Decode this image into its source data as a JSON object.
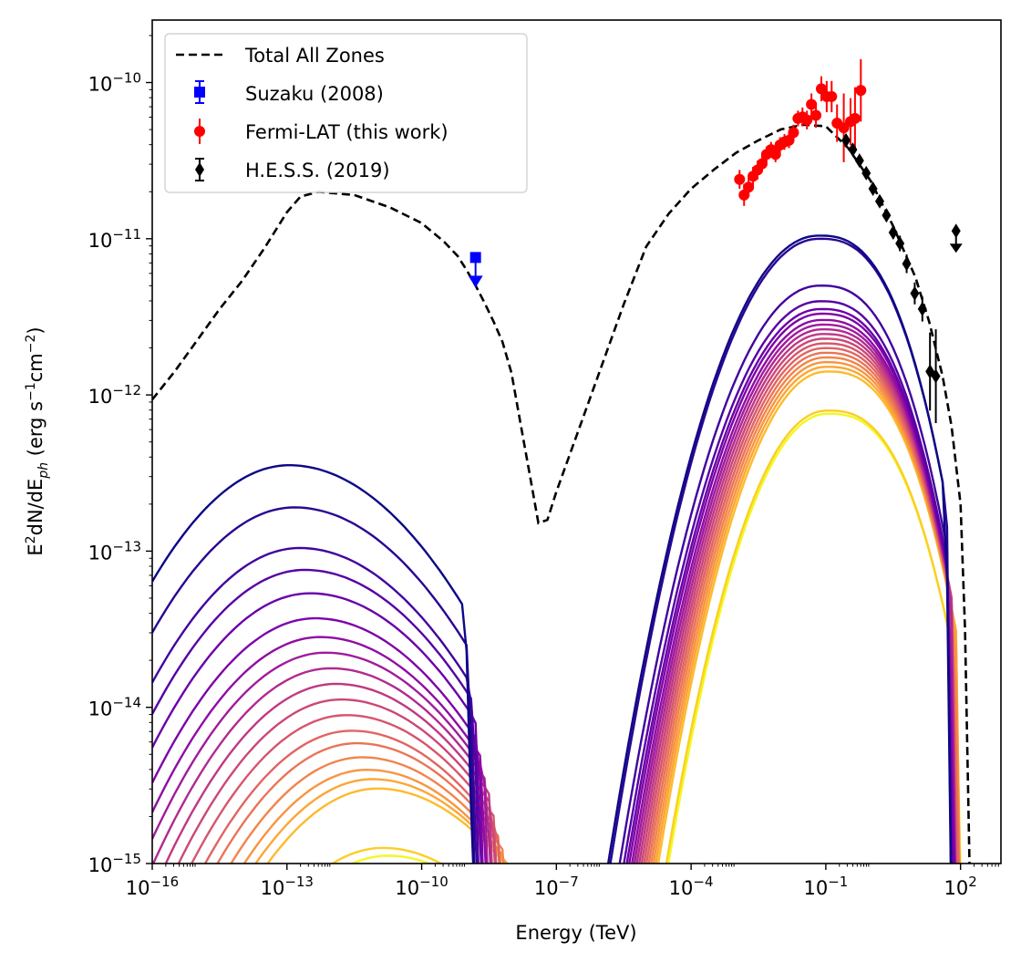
{
  "chart_data": {
    "type": "line",
    "title": "",
    "xlabel": "Energy (TeV)",
    "ylabel": "E²dN/dE_ph (erg s⁻¹cm⁻²)",
    "ylabel_parts": {
      "pre": "E",
      "sup1": "2",
      "mid": "dN/dE",
      "sub": "ph",
      "post1": " (erg s",
      "sup2": "−1",
      "post2": "cm",
      "sup3": "−2",
      "post3": ")"
    },
    "xscale": "log",
    "yscale": "log",
    "xlim_exp": [
      -16,
      2.9
    ],
    "ylim_exp": [
      -15,
      -9.6
    ],
    "x_ticks": [
      {
        "exp": -16,
        "base": "10",
        "power": "−16"
      },
      {
        "exp": -13,
        "base": "10",
        "power": "−13"
      },
      {
        "exp": -10,
        "base": "10",
        "power": "−10"
      },
      {
        "exp": -7,
        "base": "10",
        "power": "−7"
      },
      {
        "exp": -4,
        "base": "10",
        "power": "−4"
      },
      {
        "exp": -1,
        "base": "10",
        "power": "−1"
      },
      {
        "exp": 2,
        "base": "10",
        "power": "2"
      }
    ],
    "y_ticks": [
      {
        "exp": -15,
        "base": "10",
        "power": "−15"
      },
      {
        "exp": -14,
        "base": "10",
        "power": "−14"
      },
      {
        "exp": -13,
        "base": "10",
        "power": "−13"
      },
      {
        "exp": -12,
        "base": "10",
        "power": "−12"
      },
      {
        "exp": -11,
        "base": "10",
        "power": "−11"
      },
      {
        "exp": -10,
        "base": "10",
        "power": "−10"
      }
    ],
    "legend": {
      "position": "upper-left",
      "entries": [
        {
          "label": "Total All Zones",
          "style": "dashed-line",
          "color": "#000000"
        },
        {
          "label": "Suzaku (2008)",
          "style": "square-errorbar",
          "color": "#0000ff"
        },
        {
          "label": "Fermi-LAT (this work)",
          "style": "circle-errorbar",
          "color": "#ff0000"
        },
        {
          "label": "H.E.S.S. (2019)",
          "style": "diamond-errorbar",
          "color": "#000000"
        }
      ]
    },
    "total_curve": {
      "name": "Total All Zones",
      "color": "#000000",
      "dash": "dashed",
      "log_x": [
        -16,
        -15.5,
        -15,
        -14.5,
        -14,
        -13.5,
        -13,
        -12.7,
        -12.3,
        -11.5,
        -10.7,
        -10,
        -9.5,
        -9.2,
        -9,
        -8.8,
        -8.6,
        -8.4,
        -8.2,
        -8,
        -7.8,
        -7.6,
        -7.4,
        -7.2,
        -7,
        -6.5,
        -6,
        -5.5,
        -5,
        -4.5,
        -4,
        -3.5,
        -3,
        -2.5,
        -2,
        -1.5,
        -1,
        -0.5,
        0,
        0.5,
        1,
        1.3,
        1.6,
        1.8,
        2,
        2.1,
        2.2
      ],
      "log_y": [
        -12.03,
        -11.85,
        -11.65,
        -11.45,
        -11.27,
        -11.06,
        -10.83,
        -10.73,
        -10.7,
        -10.72,
        -10.8,
        -10.9,
        -11.02,
        -11.11,
        -11.2,
        -11.3,
        -11.41,
        -11.53,
        -11.66,
        -11.86,
        -12.18,
        -12.5,
        -12.82,
        -12.8,
        -12.62,
        -12.22,
        -11.82,
        -11.42,
        -11.05,
        -10.84,
        -10.68,
        -10.56,
        -10.45,
        -10.37,
        -10.3,
        -10.27,
        -10.28,
        -10.42,
        -10.63,
        -10.92,
        -11.25,
        -11.53,
        -11.88,
        -12.2,
        -12.7,
        -13.5,
        -15
      ]
    },
    "zones": {
      "count": 20,
      "colormap": "plasma",
      "colors": [
        "#0d0887",
        "#2a0593",
        "#41049d",
        "#5601a4",
        "#6a00a8",
        "#7e03a8",
        "#8f0da4",
        "#a11b9b",
        "#b12a90",
        "#bf3984",
        "#cc4778",
        "#d6556d",
        "#e16462",
        "#ea7457",
        "#f2844b",
        "#f89540",
        "#fca636",
        "#feba2c",
        "#fcce25",
        "#f0f921"
      ],
      "sync_peak_log_y": [
        -12.45,
        -12.72,
        -12.98,
        -13.12,
        -13.27,
        -13.43,
        -13.55,
        -13.65,
        -13.75,
        -13.85,
        -13.95,
        -14.05,
        -14.15,
        -14.23,
        -14.32,
        -14.4,
        -14.46,
        -14.52,
        -14.9,
        -14.95
      ],
      "ic_peak_log_y": [
        -10.98,
        -11.0,
        -11.3,
        -11.4,
        -11.45,
        -11.48,
        -11.52,
        -11.55,
        -11.58,
        -11.61,
        -11.64,
        -11.67,
        -11.7,
        -11.73,
        -11.76,
        -11.79,
        -11.82,
        -11.85,
        -12.1,
        -12.12
      ]
    },
    "suzaku": {
      "name": "Suzaku (2008)",
      "color": "#0000ff",
      "points": [
        {
          "log_x": -8.8,
          "log_y": -11.12,
          "upper_limit": true
        }
      ]
    },
    "fermi": {
      "name": "Fermi-LAT (this work)",
      "color": "#ff0000",
      "points": [
        {
          "log_x": -2.92,
          "log_y": -10.62,
          "err": 0.06
        },
        {
          "log_x": -2.82,
          "log_y": -10.72,
          "err": 0.07
        },
        {
          "log_x": -2.72,
          "log_y": -10.67,
          "err": 0.06
        },
        {
          "log_x": -2.62,
          "log_y": -10.6,
          "err": 0.06
        },
        {
          "log_x": -2.52,
          "log_y": -10.56,
          "err": 0.06
        },
        {
          "log_x": -2.42,
          "log_y": -10.52,
          "err": 0.05
        },
        {
          "log_x": -2.32,
          "log_y": -10.46,
          "err": 0.05
        },
        {
          "log_x": -2.22,
          "log_y": -10.43,
          "err": 0.05
        },
        {
          "log_x": -2.12,
          "log_y": -10.46,
          "err": 0.05
        },
        {
          "log_x": -2.02,
          "log_y": -10.4,
          "err": 0.05
        },
        {
          "log_x": -1.92,
          "log_y": -10.38,
          "err": 0.05
        },
        {
          "log_x": -1.82,
          "log_y": -10.37,
          "err": 0.05
        },
        {
          "log_x": -1.72,
          "log_y": -10.32,
          "err": 0.05
        },
        {
          "log_x": -1.62,
          "log_y": -10.23,
          "err": 0.05
        },
        {
          "log_x": -1.52,
          "log_y": -10.22,
          "err": 0.06
        },
        {
          "log_x": -1.42,
          "log_y": -10.24,
          "err": 0.06
        },
        {
          "log_x": -1.32,
          "log_y": -10.14,
          "err": 0.07
        },
        {
          "log_x": -1.22,
          "log_y": -10.21,
          "err": 0.08
        },
        {
          "log_x": -1.1,
          "log_y": -10.04,
          "err": 0.08
        },
        {
          "log_x": -0.98,
          "log_y": -10.09,
          "err": 0.1
        },
        {
          "log_x": -0.87,
          "log_y": -10.09,
          "err": 0.1
        },
        {
          "log_x": -0.75,
          "log_y": -10.26,
          "err": 0.12
        },
        {
          "log_x": -0.6,
          "log_y": -10.29,
          "err": 0.22
        },
        {
          "log_x": -0.45,
          "log_y": -10.25,
          "err": 0.15
        },
        {
          "log_x": -0.35,
          "log_y": -10.23,
          "err": 0.2
        },
        {
          "log_x": -0.22,
          "log_y": -10.05,
          "err": 0.2
        }
      ]
    },
    "hess": {
      "name": "H.E.S.S. (2019)",
      "color": "#000000",
      "points": [
        {
          "log_x": -0.55,
          "log_y": -10.37,
          "err": 0.02
        },
        {
          "log_x": -0.4,
          "log_y": -10.43,
          "err": 0.02
        },
        {
          "log_x": -0.25,
          "log_y": -10.5,
          "err": 0.02
        },
        {
          "log_x": -0.1,
          "log_y": -10.58,
          "err": 0.03
        },
        {
          "log_x": 0.05,
          "log_y": -10.68,
          "err": 0.03
        },
        {
          "log_x": 0.2,
          "log_y": -10.76,
          "err": 0.03
        },
        {
          "log_x": 0.35,
          "log_y": -10.85,
          "err": 0.04
        },
        {
          "log_x": 0.5,
          "log_y": -10.96,
          "err": 0.04
        },
        {
          "log_x": 0.65,
          "log_y": -11.03,
          "err": 0.05
        },
        {
          "log_x": 0.8,
          "log_y": -11.16,
          "err": 0.06
        },
        {
          "log_x": 0.98,
          "log_y": -11.35,
          "err": 0.07
        },
        {
          "log_x": 1.15,
          "log_y": -11.45,
          "err": 0.08
        },
        {
          "log_x": 1.32,
          "log_y": -11.85,
          "err": 0.25
        },
        {
          "log_x": 1.45,
          "log_y": -11.88,
          "err": 0.3
        },
        {
          "log_x": 1.9,
          "log_y": -10.95,
          "err": 0,
          "upper_limit": true
        }
      ]
    }
  }
}
